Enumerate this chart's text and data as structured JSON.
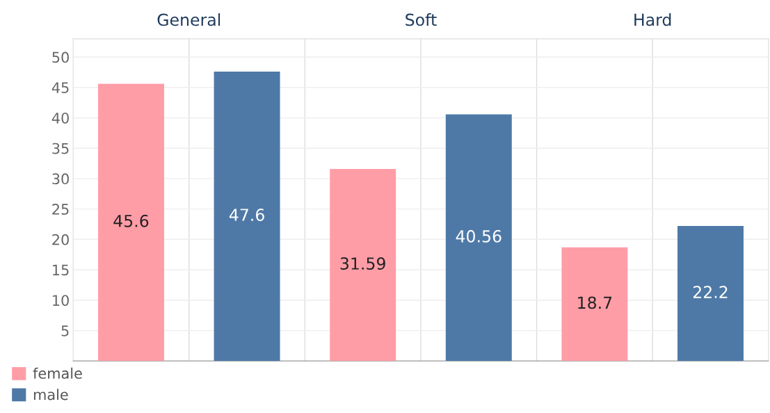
{
  "chart_data": {
    "type": "bar",
    "categories": [
      "General",
      "Soft",
      "Hard"
    ],
    "series": [
      {
        "name": "female",
        "color": "#ff9da7",
        "values": [
          45.6,
          31.59,
          18.7
        ]
      },
      {
        "name": "male",
        "color": "#4e79a7",
        "values": [
          47.6,
          40.56,
          22.2
        ]
      }
    ],
    "ylim": [
      0,
      53
    ],
    "yticks": [
      5,
      10,
      15,
      20,
      25,
      30,
      35,
      40,
      45,
      50
    ],
    "grid": true,
    "data_labels": true,
    "legend": "bottom left"
  }
}
